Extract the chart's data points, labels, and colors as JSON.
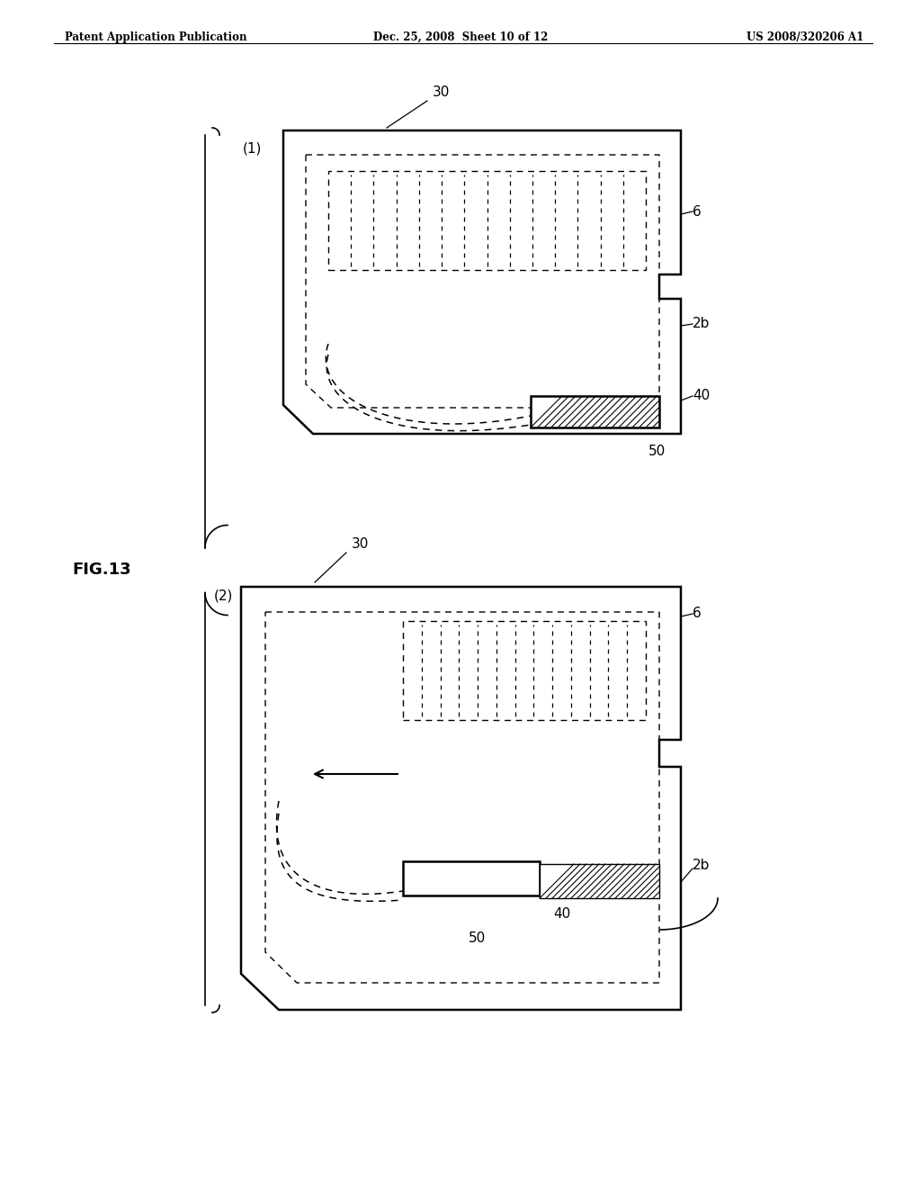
{
  "bg_color": "#ffffff",
  "text_color": "#000000",
  "header_left": "Patent Application Publication",
  "header_center": "Dec. 25, 2008  Sheet 10 of 12",
  "header_right": "US 2008/320206 A1",
  "fig_label": "FIG.13",
  "d1_label": "(1)",
  "d2_label": "(2)",
  "ref_30": "30",
  "ref_6": "6",
  "ref_2b": "2b",
  "ref_40": "40",
  "ref_50": "50"
}
